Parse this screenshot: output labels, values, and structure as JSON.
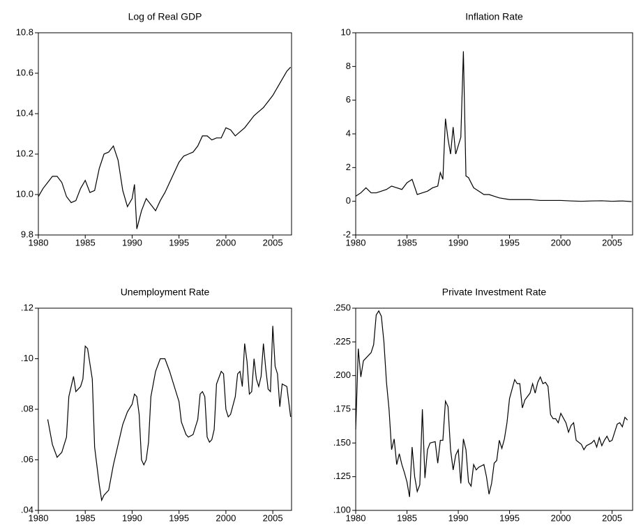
{
  "chart_data": [
    {
      "type": "line",
      "title": "Log of Real GDP",
      "color": "#000000",
      "x": [
        1980,
        1980.5,
        1981,
        1981.5,
        1982,
        1982.5,
        1983,
        1983.5,
        1984,
        1984.5,
        1985,
        1985.5,
        1986,
        1986.5,
        1987,
        1987.5,
        1988,
        1988.5,
        1989,
        1989.5,
        1990,
        1990.25,
        1990.5,
        1991,
        1991.5,
        1992,
        1992.5,
        1993,
        1993.5,
        1994,
        1994.5,
        1995,
        1995.5,
        1996,
        1996.5,
        1997,
        1997.5,
        1998,
        1998.5,
        1999,
        1999.5,
        2000,
        2000.5,
        2001,
        2001.5,
        2002,
        2002.5,
        2003,
        2003.5,
        2004,
        2004.5,
        2005,
        2005.5,
        2006,
        2006.5,
        2006.9
      ],
      "values": [
        9.99,
        10.03,
        10.06,
        10.09,
        10.09,
        10.06,
        9.99,
        9.96,
        9.97,
        10.03,
        10.07,
        10.01,
        10.02,
        10.13,
        10.2,
        10.21,
        10.24,
        10.17,
        10.02,
        9.94,
        9.98,
        10.05,
        9.83,
        9.92,
        9.98,
        9.95,
        9.92,
        9.97,
        10.01,
        10.06,
        10.11,
        10.16,
        10.19,
        10.2,
        10.21,
        10.24,
        10.29,
        10.29,
        10.27,
        10.28,
        10.28,
        10.33,
        10.32,
        10.29,
        10.31,
        10.33,
        10.36,
        10.39,
        10.41,
        10.43,
        10.46,
        10.49,
        10.53,
        10.57,
        10.61,
        10.63
      ],
      "xlim": [
        1980,
        2007
      ],
      "xticks": [
        1980,
        1985,
        1990,
        1995,
        2000,
        2005
      ],
      "ylim": [
        9.8,
        10.8
      ],
      "yticks": [
        9.8,
        {
          "value": 10,
          "label": "10.0"
        },
        10.2,
        10.4,
        10.6,
        10.8
      ]
    },
    {
      "type": "line",
      "title": "Inflation Rate",
      "color": "#000000",
      "x": [
        1980,
        1980.5,
        1981,
        1981.5,
        1982,
        1982.5,
        1983,
        1983.5,
        1984,
        1984.5,
        1985,
        1985.5,
        1986,
        1986.5,
        1987,
        1987.5,
        1988,
        1988.25,
        1988.5,
        1988.75,
        1989,
        1989.25,
        1989.5,
        1989.75,
        1990,
        1990.25,
        1990.5,
        1990.75,
        1991,
        1991.5,
        1992,
        1992.5,
        1993,
        1993.5,
        1994,
        1995,
        1996,
        1997,
        1998,
        1999,
        2000,
        2001,
        2002,
        2003,
        2004,
        2005,
        2006,
        2006.9
      ],
      "values": [
        0.3,
        0.5,
        0.8,
        0.5,
        0.5,
        0.6,
        0.7,
        0.9,
        0.8,
        0.7,
        1.1,
        1.3,
        0.4,
        0.5,
        0.6,
        0.8,
        0.9,
        1.7,
        1.3,
        4.9,
        3.7,
        2.8,
        4.4,
        2.8,
        3.3,
        3.8,
        8.9,
        1.5,
        1.4,
        0.8,
        0.6,
        0.4,
        0.4,
        0.3,
        0.2,
        0.1,
        0.1,
        0.1,
        0.05,
        0.05,
        0.05,
        0.02,
        0,
        0.02,
        0.03,
        0,
        0.02,
        -0.02
      ],
      "xlim": [
        1980,
        2007
      ],
      "xticks": [
        1980,
        1985,
        1990,
        1995,
        2000,
        2005
      ],
      "ylim": [
        -2,
        10
      ],
      "yticks": [
        -2,
        0,
        2,
        4,
        6,
        8,
        10
      ]
    },
    {
      "type": "line",
      "title": "Unemployment Rate",
      "color": "#000000",
      "x": [
        1981,
        1981.5,
        1982,
        1982.5,
        1983,
        1983.25,
        1983.75,
        1984,
        1984.5,
        1984.75,
        1985,
        1985.25,
        1985.75,
        1986,
        1986.5,
        1986.75,
        1987,
        1987.5,
        1988,
        1988.5,
        1989,
        1989.5,
        1990,
        1990.25,
        1990.5,
        1990.75,
        1991,
        1991.25,
        1991.5,
        1991.75,
        1992,
        1992.5,
        1993,
        1993.5,
        1994,
        1994.5,
        1995,
        1995.25,
        1995.75,
        1996,
        1996.5,
        1997,
        1997.25,
        1997.5,
        1997.75,
        1998,
        1998.25,
        1998.5,
        1998.75,
        1999,
        1999.5,
        1999.75,
        2000,
        2000.25,
        2000.5,
        2001,
        2001.25,
        2001.5,
        2001.75,
        2002,
        2002.25,
        2002.5,
        2002.75,
        2003,
        2003.25,
        2003.5,
        2003.75,
        2004,
        2004.25,
        2004.5,
        2004.75,
        2005,
        2005.25,
        2005.5,
        2005.75,
        2006,
        2006.5,
        2006.9
      ],
      "values": [
        0.076,
        0.066,
        0.061,
        0.063,
        0.069,
        0.085,
        0.093,
        0.087,
        0.089,
        0.092,
        0.105,
        0.104,
        0.092,
        0.065,
        0.05,
        0.044,
        0.046,
        0.048,
        0.058,
        0.066,
        0.074,
        0.079,
        0.082,
        0.086,
        0.085,
        0.078,
        0.06,
        0.058,
        0.06,
        0.067,
        0.085,
        0.095,
        0.1,
        0.1,
        0.095,
        0.089,
        0.083,
        0.075,
        0.07,
        0.069,
        0.07,
        0.076,
        0.086,
        0.087,
        0.085,
        0.069,
        0.067,
        0.068,
        0.072,
        0.09,
        0.095,
        0.094,
        0.08,
        0.077,
        0.078,
        0.085,
        0.094,
        0.095,
        0.089,
        0.106,
        0.099,
        0.086,
        0.087,
        0.1,
        0.092,
        0.089,
        0.093,
        0.106,
        0.096,
        0.088,
        0.087,
        0.113,
        0.097,
        0.094,
        0.081,
        0.09,
        0.089,
        0.077
      ],
      "xlim": [
        1980,
        2007
      ],
      "xticks": [
        1980,
        1985,
        1990,
        1995,
        2000,
        2005
      ],
      "ylim": [
        0.04,
        0.12
      ],
      "yticks": [
        {
          "value": 0.04,
          "label": ".04"
        },
        {
          "value": 0.06,
          "label": ".06"
        },
        {
          "value": 0.08,
          "label": ".08"
        },
        {
          "value": 0.1,
          "label": ".10"
        },
        {
          "value": 0.12,
          "label": ".12"
        }
      ]
    },
    {
      "type": "line",
      "title": "Private Investment Rate",
      "color": "#000000",
      "x": [
        1980,
        1980.25,
        1980.5,
        1980.75,
        1981,
        1981.5,
        1981.75,
        1982,
        1982.25,
        1982.5,
        1982.75,
        1983,
        1983.25,
        1983.5,
        1983.75,
        1984,
        1984.25,
        1984.5,
        1984.75,
        1985,
        1985.25,
        1985.5,
        1985.75,
        1986,
        1986.25,
        1986.5,
        1986.75,
        1987,
        1987.25,
        1987.75,
        1988,
        1988.25,
        1988.5,
        1988.75,
        1989,
        1989.25,
        1989.5,
        1989.75,
        1990,
        1990.25,
        1990.5,
        1990.75,
        1991,
        1991.25,
        1991.5,
        1991.75,
        1992,
        1992.5,
        1992.75,
        1993,
        1993.25,
        1993.5,
        1993.75,
        1994,
        1994.25,
        1994.5,
        1994.75,
        1995,
        1995.5,
        1995.75,
        1996,
        1996.25,
        1996.5,
        1997,
        1997.25,
        1997.5,
        1997.75,
        1998,
        1998.25,
        1998.5,
        1998.75,
        1999,
        1999.25,
        1999.5,
        1999.75,
        2000,
        2000.5,
        2000.75,
        2001,
        2001.25,
        2001.5,
        2002,
        2002.25,
        2002.5,
        2003,
        2003.25,
        2003.5,
        2003.75,
        2004,
        2004.25,
        2004.5,
        2004.75,
        2005,
        2005.25,
        2005.5,
        2005.75,
        2006,
        2006.25,
        2006.5
      ],
      "values": [
        0.16,
        0.22,
        0.199,
        0.211,
        0.213,
        0.217,
        0.223,
        0.245,
        0.248,
        0.244,
        0.225,
        0.195,
        0.175,
        0.145,
        0.153,
        0.134,
        0.142,
        0.134,
        0.128,
        0.121,
        0.11,
        0.147,
        0.125,
        0.114,
        0.119,
        0.175,
        0.124,
        0.145,
        0.15,
        0.151,
        0.135,
        0.152,
        0.152,
        0.181,
        0.177,
        0.145,
        0.13,
        0.141,
        0.145,
        0.12,
        0.153,
        0.145,
        0.121,
        0.118,
        0.134,
        0.13,
        0.132,
        0.134,
        0.125,
        0.112,
        0.12,
        0.135,
        0.137,
        0.152,
        0.146,
        0.153,
        0.165,
        0.183,
        0.197,
        0.194,
        0.194,
        0.176,
        0.182,
        0.187,
        0.194,
        0.187,
        0.195,
        0.199,
        0.194,
        0.195,
        0.192,
        0.171,
        0.168,
        0.168,
        0.165,
        0.172,
        0.165,
        0.158,
        0.163,
        0.165,
        0.152,
        0.149,
        0.145,
        0.148,
        0.15,
        0.152,
        0.147,
        0.154,
        0.148,
        0.152,
        0.155,
        0.151,
        0.152,
        0.158,
        0.164,
        0.165,
        0.162,
        0.169,
        0.167
      ],
      "xlim": [
        1980,
        2007
      ],
      "xticks": [
        1980,
        1985,
        1990,
        1995,
        2000,
        2005
      ],
      "ylim": [
        0.1,
        0.25
      ],
      "yticks": [
        {
          "value": 0.1,
          "label": ".100"
        },
        {
          "value": 0.125,
          "label": ".125"
        },
        {
          "value": 0.15,
          "label": ".150"
        },
        {
          "value": 0.175,
          "label": ".175"
        },
        {
          "value": 0.2,
          "label": ".200"
        },
        {
          "value": 0.225,
          "label": ".225"
        },
        {
          "value": 0.25,
          "label": ".250"
        }
      ]
    }
  ]
}
